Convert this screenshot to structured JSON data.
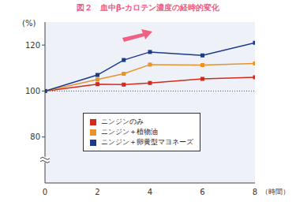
{
  "chart_data": {
    "type": "line",
    "title": "図２　血中β-カロテン濃度の経時的変化",
    "y_label": "(%)",
    "x_label": "（時間）",
    "x": [
      0,
      2,
      3,
      4,
      6,
      8
    ],
    "series": [
      {
        "name": "ニンジンのみ",
        "color": "#d42a1e",
        "values": [
          100,
          103,
          102.8,
          103.5,
          105.3,
          106
        ]
      },
      {
        "name": "ニンジン＋植物油",
        "color": "#e8922a",
        "values": [
          100,
          105,
          107.5,
          111.5,
          111.3,
          112
        ]
      },
      {
        "name": "ニンジン＋卵黄型マヨネーズ",
        "color": "#1b3a8a",
        "values": [
          100,
          107,
          113.5,
          117,
          115.5,
          121
        ]
      }
    ],
    "xlim": [
      0,
      8
    ],
    "xticks": [
      0,
      2,
      4,
      6,
      8
    ],
    "ylim": [
      60,
      130
    ],
    "yticks": [
      80,
      100,
      120
    ],
    "reference_line": 100,
    "grid": false,
    "legend": "lower center",
    "marker": "square"
  }
}
